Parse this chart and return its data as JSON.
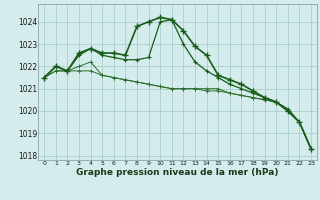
{
  "x": [
    0,
    1,
    2,
    3,
    4,
    5,
    6,
    7,
    8,
    9,
    10,
    11,
    12,
    13,
    14,
    15,
    16,
    17,
    18,
    19,
    20,
    21,
    22,
    23
  ],
  "line1": [
    1021.5,
    1022.0,
    1021.8,
    1022.6,
    1022.8,
    1022.6,
    1022.6,
    1022.5,
    1023.8,
    1024.0,
    1024.2,
    1024.1,
    1023.6,
    1022.9,
    1022.5,
    1021.6,
    1021.4,
    1021.2,
    1020.9,
    1020.6,
    1020.4,
    1020.0,
    1019.5,
    1018.3
  ],
  "line2": [
    1021.5,
    1022.0,
    1021.8,
    1022.5,
    1022.8,
    1022.5,
    1022.4,
    1022.3,
    1022.3,
    1022.4,
    1024.0,
    1024.1,
    1023.0,
    1022.2,
    1021.8,
    1021.5,
    1021.2,
    1021.0,
    1020.8,
    1020.6,
    1020.4,
    1020.0,
    1019.5,
    1018.3
  ],
  "line3": [
    1021.5,
    1021.8,
    1021.8,
    1022.0,
    1022.2,
    1021.6,
    1021.5,
    1021.4,
    1021.3,
    1021.2,
    1021.1,
    1021.0,
    1021.0,
    1021.0,
    1021.0,
    1021.0,
    1020.8,
    1020.7,
    1020.6,
    1020.5,
    1020.4,
    1020.1,
    1019.5,
    1018.3
  ],
  "line4": [
    1021.5,
    1021.8,
    1021.8,
    1021.8,
    1021.8,
    1021.6,
    1021.5,
    1021.4,
    1021.3,
    1021.2,
    1021.1,
    1021.0,
    1021.0,
    1021.0,
    1020.9,
    1020.9,
    1020.8,
    1020.7,
    1020.6,
    1020.5,
    1020.4,
    1020.1,
    1019.5,
    1018.3
  ],
  "ylim": [
    1017.8,
    1024.8
  ],
  "yticks": [
    1018,
    1019,
    1020,
    1021,
    1022,
    1023,
    1024
  ],
  "xticks": [
    0,
    1,
    2,
    3,
    4,
    5,
    6,
    7,
    8,
    9,
    10,
    11,
    12,
    13,
    14,
    15,
    16,
    17,
    18,
    19,
    20,
    21,
    22,
    23
  ],
  "xlabel": "Graphe pression niveau de la mer (hPa)",
  "bg_color": "#d4ecec",
  "grid_color": "#aacece",
  "line_color1": "#1a5c1a",
  "line_color2": "#1a5c1a",
  "line_color3": "#2d6e2d",
  "line_color4": "#2d6e2d"
}
